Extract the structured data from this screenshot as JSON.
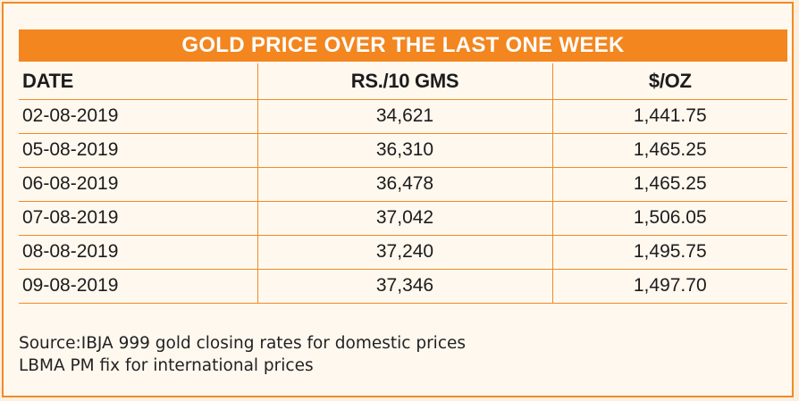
{
  "title": "GOLD PRICE OVER THE LAST ONE WEEK",
  "table": {
    "headers": {
      "date": "DATE",
      "rs": "RS./10 GMS",
      "usd": "$/OZ"
    },
    "rows": [
      {
        "date": "02-08-2019",
        "rs": "34,621",
        "usd": "1,441.75"
      },
      {
        "date": "05-08-2019",
        "rs": "36,310",
        "usd": "1,465.25"
      },
      {
        "date": "06-08-2019",
        "rs": "36,478",
        "usd": "1,465.25"
      },
      {
        "date": "07-08-2019",
        "rs": "37,042",
        "usd": "1,506.05"
      },
      {
        "date": "08-08-2019",
        "rs": "37,240",
        "usd": "1,495.75"
      },
      {
        "date": "09-08-2019",
        "rs": "37,346",
        "usd": "1,497.70"
      }
    ]
  },
  "source": {
    "line1": "Source:IBJA 999 gold closing rates for domestic prices",
    "line2": "LBMA PM fix for international prices"
  },
  "colors": {
    "accent": "#f3861f",
    "background": "#fcefe0"
  }
}
